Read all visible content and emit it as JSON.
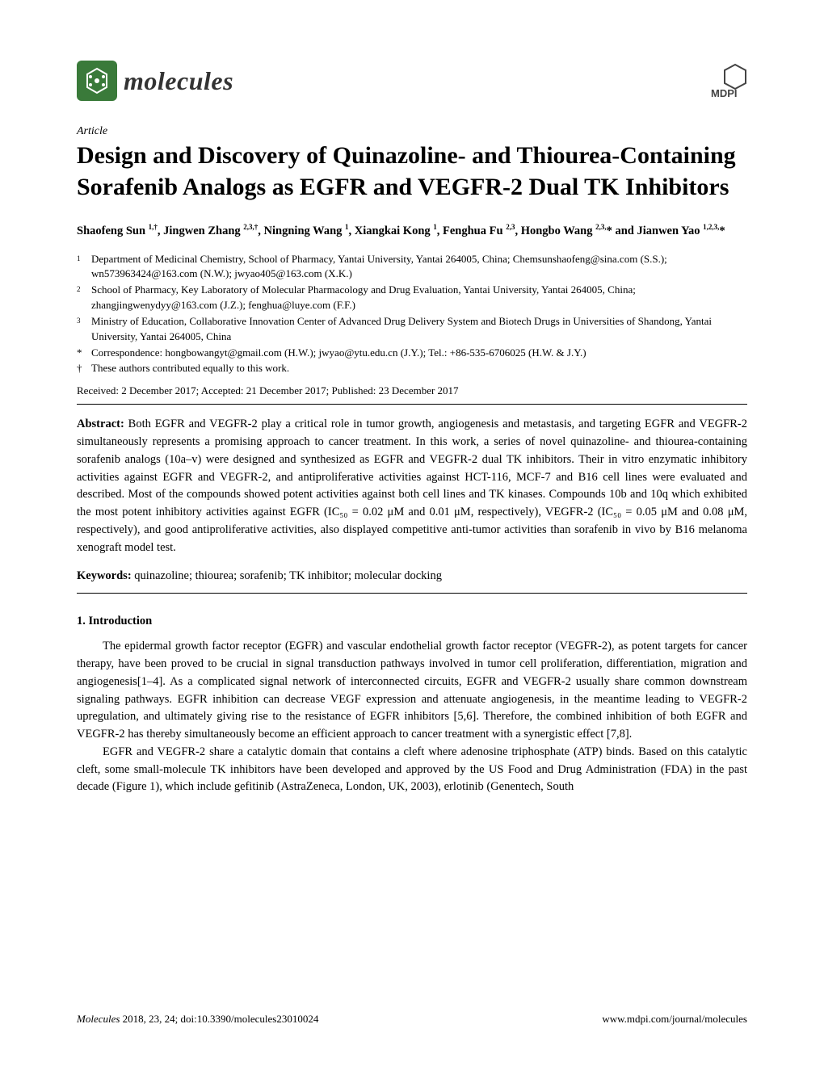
{
  "journal_logo_text": "molecules",
  "publisher_label": "MDPI",
  "article_type": "Article",
  "title": "Design and Discovery of Quinazoline- and Thiourea-Containing Sorafenib Analogs as EGFR and VEGFR-2 Dual TK Inhibitors",
  "authors_html": "Shaofeng Sun <sup>1,†</sup>, Jingwen Zhang <sup>2,3,†</sup>, Ningning Wang <sup>1</sup>, Xiangkai Kong <sup>1</sup>, Fenghua Fu <sup>2,3</sup>, Hongbo Wang <sup>2,3,</sup>* and Jianwen Yao <sup>1,2,3,</sup>*",
  "affiliations": [
    {
      "marker": "1",
      "text": "Department of Medicinal Chemistry, School of Pharmacy, Yantai University, Yantai 264005, China; Chemsunshaofeng@sina.com (S.S.); wn573963424@163.com (N.W.); jwyao405@163.com (X.K.)"
    },
    {
      "marker": "2",
      "text": "School of Pharmacy, Key Laboratory of Molecular Pharmacology and Drug Evaluation, Yantai University, Yantai 264005, China; zhangjingwenydyy@163.com (J.Z.); fenghua@luye.com (F.F.)"
    },
    {
      "marker": "3",
      "text": "Ministry of Education, Collaborative Innovation Center of Advanced Drug Delivery System and Biotech Drugs in Universities of Shandong, Yantai University, Yantai 264005, China"
    },
    {
      "marker": "*",
      "text": "Correspondence: hongbowangyt@gmail.com (H.W.); jwyao@ytu.edu.cn (J.Y.); Tel.: +86-535-6706025 (H.W. & J.Y.)"
    },
    {
      "marker": "†",
      "text": "These authors contributed equally to this work."
    }
  ],
  "dates": "Received: 2 December 2017; Accepted: 21 December 2017; Published: 23 December 2017",
  "abstract_label": "Abstract:",
  "abstract_text": " Both EGFR and VEGFR-2 play a critical role in tumor growth, angiogenesis and metastasis, and targeting EGFR and VEGFR-2 simultaneously represents a promising approach to cancer treatment. In this work, a series of novel quinazoline- and thiourea-containing sorafenib analogs (10a–v) were designed and synthesized as EGFR and VEGFR-2 dual TK inhibitors. Their in vitro enzymatic inhibitory activities against EGFR and VEGFR-2, and antiproliferative activities against HCT-116, MCF-7 and B16 cell lines were evaluated and described. Most of the compounds showed potent activities against both cell lines and TK kinases. Compounds 10b and 10q which exhibited the most potent inhibitory activities against EGFR (IC₅₀ = 0.02 μM and 0.01 μM, respectively), VEGFR-2 (IC₅₀ = 0.05 μM and 0.08 μM, respectively), and good antiproliferative activities, also displayed competitive anti-tumor activities than sorafenib in vivo by B16 melanoma xenograft model test.",
  "keywords_label": "Keywords:",
  "keywords_text": " quinazoline; thiourea; sorafenib; TK inhibitor; molecular docking",
  "section1_heading": "1. Introduction",
  "para1": "The epidermal growth factor receptor (EGFR) and vascular endothelial growth factor receptor (VEGFR-2), as potent targets for cancer therapy, have been proved to be crucial in signal transduction pathways involved in tumor cell proliferation, differentiation, migration and angiogenesis[1–4]. As a complicated signal network of interconnected circuits, EGFR and VEGFR-2 usually share common downstream signaling pathways. EGFR inhibition can decrease VEGF expression and attenuate angiogenesis, in the meantime leading to VEGFR-2 upregulation, and ultimately giving rise to the resistance of EGFR inhibitors [5,6]. Therefore, the combined inhibition of both EGFR and VEGFR-2 has thereby simultaneously become an efficient approach to cancer treatment with a synergistic effect [7,8].",
  "para2": "EGFR and VEGFR-2 share a catalytic domain that contains a cleft where adenosine triphosphate (ATP) binds. Based on this catalytic cleft, some small-molecule TK inhibitors have been developed and approved by the US Food and Drug Administration (FDA) in the past decade (Figure 1), which include gefitinib (AstraZeneca, London, UK, 2003), erlotinib (Genentech, South",
  "footer_left_journal": "Molecules",
  "footer_left_rest": " 2018, 23, 24; doi:10.3390/molecules23010024",
  "footer_right": "www.mdpi.com/journal/molecules"
}
